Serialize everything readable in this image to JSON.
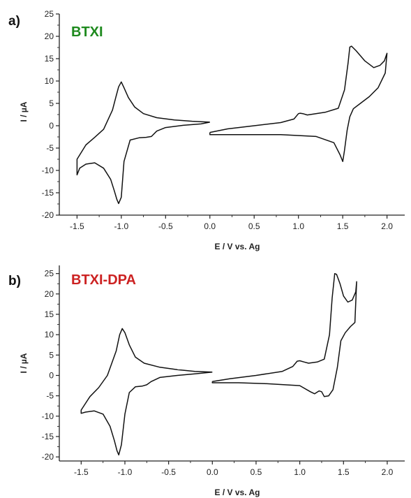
{
  "colors": {
    "curve": "#111111",
    "axis": "#222222"
  },
  "chart_data": [
    {
      "type": "line",
      "panel_label": "a)",
      "title": "BTXI",
      "title_color": "#1e8a1e",
      "xlabel": "E / V vs. Ag",
      "ylabel": "I / µA",
      "xlim": [
        -1.7,
        2.2
      ],
      "ylim": [
        -20,
        25
      ],
      "xticks": [
        -1.5,
        -1.0,
        -0.5,
        0.0,
        0.5,
        1.0,
        1.5,
        2.0
      ],
      "xtick_labels": [
        "-1.5",
        "-1.0",
        "-0.5",
        "0.0",
        "0.5",
        "1.0",
        "1.5",
        "2.0"
      ],
      "yticks": [
        -20,
        -15,
        -10,
        -5,
        0,
        5,
        10,
        15,
        20,
        25
      ],
      "ytick_labels": [
        "-20",
        "-15",
        "-10",
        "-5",
        "0",
        "5",
        "10",
        "15",
        "20",
        "25"
      ],
      "grid": false,
      "series": [
        {
          "x": [
            0.0,
            -0.2,
            -0.4,
            -0.6,
            -0.75,
            -0.85,
            -0.92,
            -0.97,
            -1.0,
            -1.03,
            -1.06,
            -1.1,
            -1.2,
            -1.3,
            -1.4,
            -1.5,
            -1.5,
            -1.47,
            -1.4,
            -1.3,
            -1.2,
            -1.12,
            -1.08,
            -1.05,
            -1.03,
            -1.0,
            -0.97,
            -0.9,
            -0.8,
            -0.72,
            -0.66,
            -0.6,
            -0.5,
            -0.3,
            -0.1,
            0.0
          ],
          "y": [
            0.8,
            1.0,
            1.3,
            1.8,
            2.7,
            4.2,
            6.3,
            8.5,
            9.8,
            8.7,
            6.5,
            3.5,
            -0.8,
            -2.6,
            -4.3,
            -7.5,
            -11.0,
            -9.5,
            -8.6,
            -8.3,
            -9.5,
            -12.0,
            -14.5,
            -16.5,
            -17.4,
            -16.0,
            -8.0,
            -3.2,
            -2.7,
            -2.6,
            -2.4,
            -1.2,
            -0.4,
            0.1,
            0.4,
            0.8
          ]
        },
        {
          "x": [
            0.0,
            0.2,
            0.5,
            0.8,
            0.95,
            1.0,
            1.02,
            1.05,
            1.1,
            1.3,
            1.45,
            1.52,
            1.56,
            1.58,
            1.6,
            1.65,
            1.75,
            1.85,
            1.92,
            1.97,
            2.0,
            1.98,
            1.9,
            1.8,
            1.7,
            1.62,
            1.58,
            1.55,
            1.52,
            1.5,
            1.47,
            1.4,
            1.2,
            0.8,
            0.4,
            0.0,
            0.0
          ],
          "y": [
            -1.5,
            -0.7,
            0.0,
            0.7,
            1.5,
            2.7,
            2.8,
            2.7,
            2.4,
            3.0,
            3.9,
            8.0,
            14.0,
            17.6,
            17.8,
            16.8,
            14.5,
            13.0,
            13.5,
            14.5,
            16.2,
            11.8,
            8.5,
            6.5,
            5.0,
            3.8,
            2.0,
            -1.0,
            -5.5,
            -8.0,
            -6.5,
            -3.8,
            -2.4,
            -2.0,
            -2.0,
            -2.0,
            -1.5
          ]
        }
      ]
    },
    {
      "type": "line",
      "panel_label": "b)",
      "title": "BTXI-DPA",
      "title_color": "#cc2222",
      "xlabel": "E / V vs. Ag",
      "ylabel": "I / µA",
      "xlim": [
        -1.75,
        2.2
      ],
      "ylim": [
        -21,
        27
      ],
      "xticks": [
        -1.5,
        -1.0,
        -0.5,
        0.0,
        0.5,
        1.0,
        1.5,
        2.0
      ],
      "xtick_labels": [
        "-1.5",
        "-1.0",
        "-0.5",
        "0.0",
        "0.5",
        "1.0",
        "1.5",
        "2.0"
      ],
      "yticks": [
        -20,
        -15,
        -10,
        -5,
        0,
        5,
        10,
        15,
        20,
        25
      ],
      "ytick_labels": [
        "-20",
        "-15",
        "-10",
        "-5",
        "0",
        "5",
        "10",
        "15",
        "20",
        "25"
      ],
      "grid": false,
      "series": [
        {
          "x": [
            0.0,
            -0.2,
            -0.4,
            -0.6,
            -0.78,
            -0.88,
            -0.95,
            -1.0,
            -1.03,
            -1.06,
            -1.1,
            -1.2,
            -1.3,
            -1.4,
            -1.5,
            -1.5,
            -1.45,
            -1.35,
            -1.25,
            -1.17,
            -1.12,
            -1.09,
            -1.07,
            -1.04,
            -1.0,
            -0.95,
            -0.88,
            -0.8,
            -0.75,
            -0.7,
            -0.6,
            -0.4,
            -0.2,
            0.0
          ],
          "y": [
            0.8,
            1.0,
            1.4,
            2.0,
            3.0,
            4.5,
            7.5,
            10.5,
            11.5,
            10.0,
            6.0,
            0.0,
            -3.0,
            -5.2,
            -8.5,
            -9.3,
            -9.0,
            -8.7,
            -9.5,
            -12.5,
            -16.0,
            -18.5,
            -19.5,
            -17.0,
            -9.5,
            -4.2,
            -2.8,
            -2.6,
            -2.3,
            -1.5,
            -0.5,
            0.0,
            0.4,
            0.8
          ]
        },
        {
          "x": [
            0.0,
            0.2,
            0.5,
            0.8,
            0.92,
            0.97,
            1.0,
            1.05,
            1.1,
            1.2,
            1.28,
            1.34,
            1.37,
            1.4,
            1.42,
            1.46,
            1.5,
            1.55,
            1.6,
            1.64,
            1.65,
            1.63,
            1.58,
            1.52,
            1.47,
            1.43,
            1.38,
            1.33,
            1.28,
            1.25,
            1.22,
            1.17,
            1.12,
            1.0,
            0.6,
            0.3,
            0.0,
            0.0
          ],
          "y": [
            -1.5,
            -0.8,
            0.0,
            1.0,
            2.2,
            3.5,
            3.6,
            3.3,
            3.0,
            3.3,
            4.0,
            10.0,
            19.0,
            25.0,
            24.8,
            22.5,
            19.5,
            18.0,
            18.5,
            20.5,
            23.0,
            13.0,
            12.0,
            10.5,
            8.5,
            2.0,
            -3.5,
            -5.0,
            -5.2,
            -4.0,
            -3.8,
            -4.5,
            -4.0,
            -2.5,
            -2.0,
            -1.8,
            -1.8,
            -1.5
          ]
        }
      ]
    }
  ]
}
